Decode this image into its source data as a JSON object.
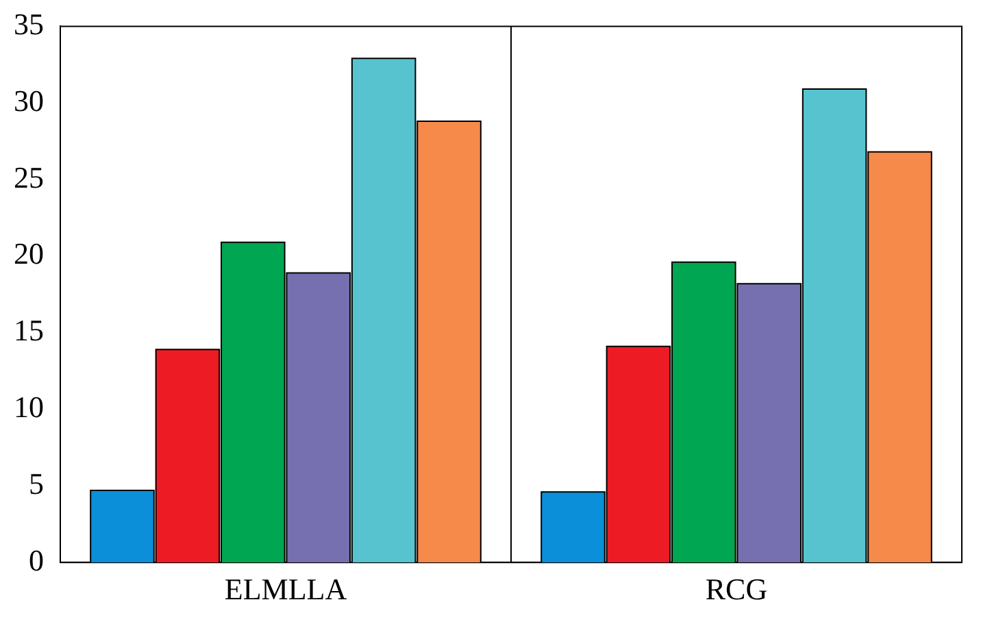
{
  "chart_data": {
    "type": "bar",
    "categories": [
      "ELMLLA",
      "RCG"
    ],
    "series": [
      {
        "color": "#0b8fd8",
        "values": [
          4.7,
          4.6
        ]
      },
      {
        "color": "#ed1c24",
        "values": [
          13.9,
          14.1
        ]
      },
      {
        "color": "#00a651",
        "values": [
          20.9,
          19.6
        ]
      },
      {
        "color": "#7670b0",
        "values": [
          18.9,
          18.2
        ]
      },
      {
        "color": "#56c3cf",
        "values": [
          32.9,
          30.9
        ]
      },
      {
        "color": "#f58a4b",
        "values": [
          28.8,
          26.8
        ]
      }
    ],
    "ylim": [
      0,
      35
    ],
    "yticks": [
      0,
      5,
      10,
      15,
      20,
      25,
      30,
      35
    ],
    "grid": "x"
  }
}
